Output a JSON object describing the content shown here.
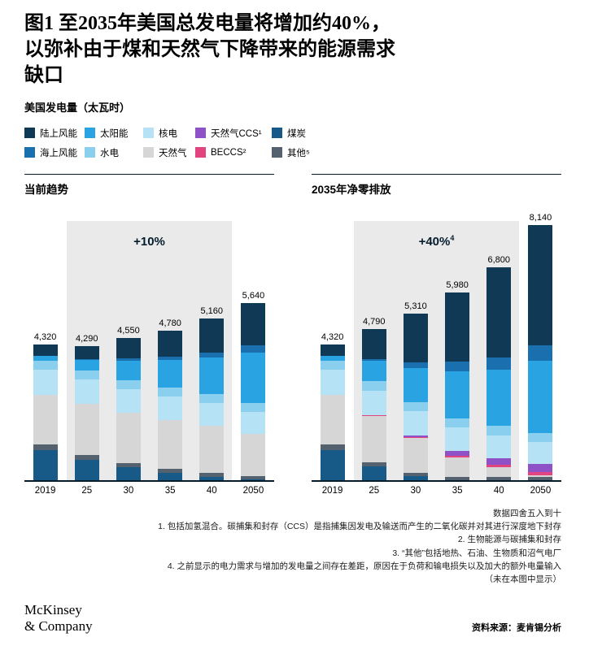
{
  "title_lines": [
    "图1 至2035年美国总发电量将增加约40%，",
    "以弥补由于煤和天然气下降带来的能源需求",
    "缺口"
  ],
  "subtitle": "美国发电量（太瓦时）",
  "legend": {
    "rows": [
      [
        {
          "label": "陆上风能",
          "color": "#103956"
        },
        {
          "label": "太阳能",
          "color": "#29a3e2"
        },
        {
          "label": "核电",
          "color": "#b5e3f5"
        },
        {
          "label": "天然气CCS¹",
          "color": "#8f52c6"
        },
        {
          "label": "煤炭",
          "color": "#175a87"
        }
      ],
      [
        {
          "label": "海上风能",
          "color": "#1a6fae"
        },
        {
          "label": "水电",
          "color": "#8ad0ee"
        },
        {
          "label": "天然气",
          "color": "#d6d6d6"
        },
        {
          "label": "BECCS²",
          "color": "#e1447e"
        },
        {
          "label": "其他⁵",
          "color": "#53626e"
        }
      ]
    ]
  },
  "chart_data": [
    {
      "type": "bar",
      "stacked": true,
      "title": "当前趋势",
      "annotation": "+10%",
      "annotation_sup": "",
      "unit": "太瓦时",
      "categories": [
        "2019",
        "25",
        "30",
        "35",
        "40",
        "2050"
      ],
      "totals": [
        "4,320",
        "4,290",
        "4,550",
        "4,780",
        "5,160",
        "5,640"
      ],
      "totals_numeric": [
        4320,
        4290,
        4550,
        4780,
        5160,
        5640
      ],
      "series": [
        {
          "key": "coal",
          "name": "煤炭",
          "color": "#175a87",
          "values": [
            960,
            640,
            400,
            230,
            100,
            30
          ]
        },
        {
          "key": "other",
          "name": "其他",
          "color": "#53626e",
          "values": [
            170,
            150,
            140,
            130,
            120,
            100
          ]
        },
        {
          "key": "gas",
          "name": "天然气",
          "color": "#d6d6d6",
          "values": [
            1590,
            1650,
            1600,
            1550,
            1500,
            1350
          ]
        },
        {
          "key": "beccs",
          "name": "BECCS",
          "color": "#e1447e",
          "values": [
            0,
            0,
            0,
            0,
            0,
            0
          ]
        },
        {
          "key": "gas-ccs",
          "name": "天然气CCS",
          "color": "#8f52c6",
          "values": [
            0,
            0,
            0,
            0,
            0,
            0
          ]
        },
        {
          "key": "nuclear",
          "name": "核电",
          "color": "#b5e3f5",
          "values": [
            810,
            780,
            770,
            760,
            740,
            700
          ]
        },
        {
          "key": "hydro",
          "name": "水电",
          "color": "#8ad0ee",
          "values": [
            290,
            290,
            290,
            290,
            290,
            290
          ]
        },
        {
          "key": "solar",
          "name": "太阳能",
          "color": "#29a3e2",
          "values": [
            150,
            330,
            600,
            870,
            1150,
            1600
          ]
        },
        {
          "key": "offshore-wind",
          "name": "海上风能",
          "color": "#1a6fae",
          "values": [
            0,
            30,
            80,
            120,
            160,
            220
          ]
        },
        {
          "key": "onshore-wind",
          "name": "陆上风能",
          "color": "#103956",
          "values": [
            350,
            420,
            670,
            830,
            1100,
            1350
          ]
        }
      ]
    },
    {
      "type": "bar",
      "stacked": true,
      "title": "2035年净零排放",
      "annotation": "+40%",
      "annotation_sup": "4",
      "unit": "太瓦时",
      "categories": [
        "2019",
        "25",
        "30",
        "35",
        "40",
        "2050"
      ],
      "totals": [
        "4,320",
        "4,790",
        "5,310",
        "5,980",
        "6,800",
        "8,140"
      ],
      "totals_numeric": [
        4320,
        4790,
        5310,
        5980,
        6800,
        8140
      ],
      "series": [
        {
          "key": "coal",
          "name": "煤炭",
          "color": "#175a87",
          "values": [
            960,
            430,
            120,
            0,
            0,
            0
          ]
        },
        {
          "key": "other",
          "name": "其他",
          "color": "#53626e",
          "values": [
            170,
            140,
            120,
            110,
            100,
            90
          ]
        },
        {
          "key": "gas",
          "name": "天然气",
          "color": "#d6d6d6",
          "values": [
            1590,
            1480,
            1100,
            600,
            300,
            60
          ]
        },
        {
          "key": "beccs",
          "name": "BECCS",
          "color": "#e1447e",
          "values": [
            0,
            10,
            30,
            60,
            80,
            100
          ]
        },
        {
          "key": "gas-ccs",
          "name": "天然气CCS",
          "color": "#8f52c6",
          "values": [
            0,
            0,
            50,
            150,
            200,
            250
          ]
        },
        {
          "key": "nuclear",
          "name": "核电",
          "color": "#b5e3f5",
          "values": [
            810,
            780,
            770,
            760,
            750,
            720
          ]
        },
        {
          "key": "hydro",
          "name": "水电",
          "color": "#8ad0ee",
          "values": [
            290,
            290,
            290,
            290,
            290,
            290
          ]
        },
        {
          "key": "solar",
          "name": "太阳能",
          "color": "#29a3e2",
          "values": [
            150,
            650,
            1100,
            1500,
            1800,
            2300
          ]
        },
        {
          "key": "offshore-wind",
          "name": "海上风能",
          "color": "#1a6fae",
          "values": [
            0,
            60,
            180,
            300,
            400,
            500
          ]
        },
        {
          "key": "onshore-wind",
          "name": "陆上风能",
          "color": "#103956",
          "values": [
            350,
            950,
            1550,
            2210,
            2880,
            3830
          ]
        }
      ]
    }
  ],
  "footnotes": [
    "数据四舍五入到十",
    "1. 包括加氢混合。碳捕集和封存（CCS）是指捕集因发电及输送而产生的二氧化碳并对其进行深度地下封存",
    "2. 生物能源与碳捕集和封存",
    "3. “其他”包括地热、石油、生物质和沼气电厂",
    "4. 之前显示的电力需求与增加的发电量之间存在差距，原因在于负荷和输电损失以及加大的额外电量输入",
    "（未在本图中显示）"
  ],
  "logo": {
    "line1": "McKinsey",
    "line2": "& Company"
  },
  "source": "资料来源：麦肯锡分析"
}
